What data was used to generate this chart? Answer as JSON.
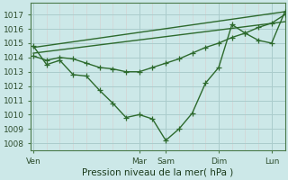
{
  "background_color": "#cce8e8",
  "grid_color_major": "#aacccc",
  "grid_color_minor": "#ddbbbb",
  "line_color": "#2d6a2d",
  "xlabel": "Pression niveau de la mer( hPa )",
  "xtick_labels": [
    "Ven",
    "",
    "Mar",
    "Sam",
    "",
    "Dim",
    "",
    "Lun"
  ],
  "xtick_positions": [
    0,
    2,
    4,
    5,
    6,
    7,
    8,
    9
  ],
  "ylim": [
    1007.5,
    1017.8
  ],
  "yticks": [
    1008,
    1009,
    1010,
    1011,
    1012,
    1013,
    1014,
    1015,
    1016,
    1017
  ],
  "xlim": [
    -0.1,
    9.5
  ],
  "series1_x": [
    0,
    0.5,
    1.0,
    1.5,
    2.0,
    2.5,
    3.0,
    3.5,
    4.0,
    4.5,
    5.0,
    5.5,
    6.0,
    6.5,
    7.0,
    7.5,
    8.0,
    8.5,
    9.0,
    9.5
  ],
  "series1_y": [
    1014.8,
    1013.5,
    1013.8,
    1012.8,
    1012.7,
    1011.7,
    1010.8,
    1009.8,
    1010.0,
    1009.7,
    1008.2,
    1009.0,
    1010.1,
    1012.2,
    1013.3,
    1016.3,
    1015.7,
    1015.2,
    1015.0,
    1017.2
  ],
  "series2_x": [
    0,
    0.5,
    1.0,
    1.5,
    2.0,
    2.5,
    3.0,
    3.5,
    4.0,
    4.5,
    5.0,
    5.5,
    6.0,
    6.5,
    7.0,
    7.5,
    8.0,
    8.5,
    9.0,
    9.5
  ],
  "series2_y": [
    1014.1,
    1013.8,
    1014.0,
    1013.9,
    1013.6,
    1013.3,
    1013.2,
    1013.0,
    1013.0,
    1013.3,
    1013.6,
    1013.9,
    1014.3,
    1014.7,
    1015.0,
    1015.4,
    1015.7,
    1016.1,
    1016.4,
    1017.0
  ],
  "trend1_x": [
    0,
    9.5
  ],
  "trend1_y": [
    1014.3,
    1016.5
  ],
  "trend2_x": [
    0,
    9.5
  ],
  "trend2_y": [
    1014.7,
    1017.2
  ],
  "marker_size": 4.0,
  "linewidth": 1.0,
  "xlabel_fontsize": 7.5,
  "tick_fontsize": 6.5
}
